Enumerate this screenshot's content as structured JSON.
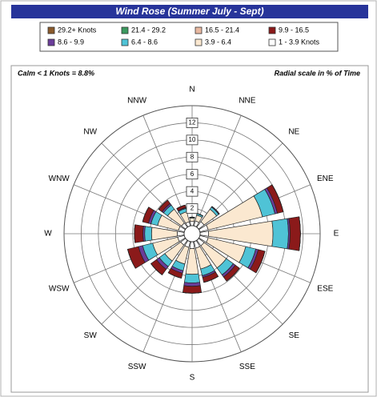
{
  "chart_data": {
    "type": "windrose",
    "title": "Wind Rose (Summer July - Sept)",
    "annotations": [
      "Calm < 1 Knots = 8.8%",
      "Radial scale in % of Time"
    ],
    "categories": [
      "N",
      "NNE",
      "NE",
      "ENE",
      "E",
      "ESE",
      "SE",
      "SSE",
      "S",
      "SSW",
      "SW",
      "WSW",
      "W",
      "WNW",
      "NW",
      "NNW"
    ],
    "series": [
      {
        "name": "29.2+ Knots",
        "color": "#8a5a2b",
        "values": [
          0,
          0,
          0,
          0,
          0,
          0,
          0,
          0,
          0,
          0,
          0,
          0,
          0,
          0,
          0,
          0
        ]
      },
      {
        "name": "21.4 - 29.2",
        "color": "#3c9a5f",
        "values": [
          0,
          0,
          0,
          0,
          0,
          0,
          0,
          0,
          0,
          0,
          0,
          0,
          0,
          0,
          0,
          0
        ]
      },
      {
        "name": "16.5 - 21.4",
        "color": "#e8b8a0",
        "values": [
          0,
          0,
          0,
          0,
          0,
          0,
          0,
          0,
          0,
          0,
          0,
          0,
          0,
          0,
          0,
          0
        ]
      },
      {
        "name": "9.9 - 16.5",
        "color": "#8b1a1a",
        "values": [
          0,
          0,
          0,
          0.7,
          1.2,
          0.8,
          0.6,
          0.6,
          0.8,
          0.6,
          0.8,
          1.3,
          1,
          0.7,
          0.5,
          0.3
        ]
      },
      {
        "name": "8.6 - 9.9",
        "color": "#6a3d9a",
        "values": [
          0,
          0,
          0.1,
          0.3,
          0.2,
          0.3,
          0.3,
          0.2,
          0.4,
          0.3,
          0.4,
          0.5,
          0.2,
          0.3,
          0.2,
          0.1
        ]
      },
      {
        "name": "6.4 - 8.6",
        "color": "#4fc3d6",
        "values": [
          0.1,
          0.2,
          0.3,
          1.5,
          1.8,
          1.2,
          1,
          0.8,
          1,
          0.8,
          0.8,
          1.2,
          0.8,
          0.8,
          0.6,
          0.4
        ]
      },
      {
        "name": "3.9 - 6.4",
        "color": "#fbe8d0",
        "values": [
          0.4,
          0.7,
          1.8,
          6.5,
          7.5,
          4.5,
          3.2,
          2.5,
          3,
          2,
          2.3,
          3,
          3,
          2.5,
          2,
          1.2
        ]
      },
      {
        "name": "1 - 3.9 Knots",
        "color": "#ffffff",
        "values": [
          0.5,
          0.6,
          0.8,
          1,
          1,
          1,
          0.8,
          0.8,
          0.8,
          0.7,
          0.7,
          0.8,
          0.8,
          0.7,
          0.6,
          0.5
        ]
      }
    ],
    "rlim": [
      0,
      14
    ],
    "rticks": [
      2,
      4,
      6,
      8,
      10,
      12
    ],
    "grid": true
  }
}
